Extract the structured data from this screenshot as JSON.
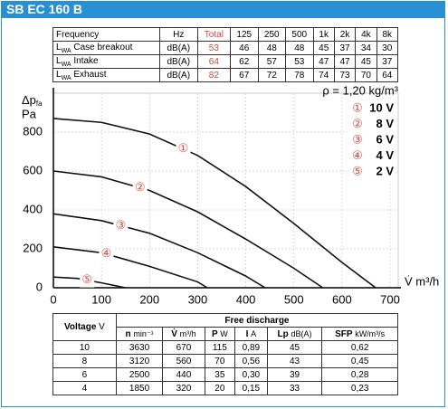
{
  "header": {
    "title": "SB EC 160 B"
  },
  "sound_table": {
    "header": [
      "Frequency",
      "Hz",
      "Total",
      "125",
      "250",
      "500",
      "1k",
      "2k",
      "4k",
      "8k"
    ],
    "rows": [
      {
        "label": "L",
        "sub": "WA",
        "name": "Case breakout",
        "unit": "dB(A)",
        "values": [
          "53",
          "46",
          "48",
          "48",
          "45",
          "37",
          "34",
          "30"
        ]
      },
      {
        "label": "L",
        "sub": "WA",
        "name": "Intake",
        "unit": "dB(A)",
        "values": [
          "64",
          "62",
          "57",
          "53",
          "47",
          "47",
          "45",
          "37"
        ]
      },
      {
        "label": "L",
        "sub": "WA",
        "name": "Exhaust",
        "unit": "dB(A)",
        "values": [
          "82",
          "67",
          "72",
          "78",
          "74",
          "73",
          "70",
          "64"
        ]
      }
    ]
  },
  "chart_data": {
    "type": "line",
    "y_label": "Δp",
    "y_label_sub": "fa",
    "y_unit": "Pa",
    "x_label": "V̇ m³/h",
    "density": "ρ = 1,20 kg/m³",
    "xlim": [
      0,
      700
    ],
    "ylim": [
      0,
      1000
    ],
    "xticks": [
      0,
      100,
      200,
      300,
      400,
      500,
      600,
      700
    ],
    "yticks": [
      0,
      200,
      400,
      600,
      800
    ],
    "grid": true,
    "marker_color": "#d9463b",
    "series": [
      {
        "name": "10 V",
        "marker": "①",
        "color": "#111111",
        "x": [
          0,
          100,
          200,
          300,
          400,
          500,
          600,
          670
        ],
        "values": [
          870,
          850,
          790,
          680,
          520,
          330,
          130,
          0
        ]
      },
      {
        "name": "8 V",
        "marker": "②",
        "color": "#111111",
        "x": [
          0,
          100,
          200,
          300,
          400,
          500,
          560
        ],
        "values": [
          600,
          570,
          500,
          390,
          250,
          100,
          0
        ]
      },
      {
        "name": "6 V",
        "marker": "③",
        "color": "#111111",
        "x": [
          0,
          100,
          200,
          300,
          400,
          440
        ],
        "values": [
          380,
          345,
          280,
          180,
          60,
          0
        ]
      },
      {
        "name": "4 V",
        "marker": "④",
        "color": "#111111",
        "x": [
          0,
          100,
          200,
          300,
          320
        ],
        "values": [
          210,
          180,
          110,
          30,
          0
        ]
      },
      {
        "name": "2 V",
        "marker": "⑤",
        "color": "#111111",
        "x": [
          0,
          50,
          100,
          150
        ],
        "values": [
          55,
          48,
          25,
          0
        ]
      }
    ]
  },
  "performance_table": {
    "voltage": "Voltage",
    "voltage_unit": "V",
    "group": "Free discharge",
    "columns": [
      {
        "name": "n",
        "unit": "min⁻¹"
      },
      {
        "name": "V̇",
        "unit": "m³/h"
      },
      {
        "name": "P",
        "unit": "W"
      },
      {
        "name": "I",
        "unit": "A"
      },
      {
        "name": "Lp",
        "unit": "dB(A)"
      },
      {
        "name": "SFP",
        "unit": "kW/m³/s"
      }
    ],
    "rows": [
      [
        "10",
        "3630",
        "670",
        "115",
        "0,89",
        "45",
        "0,62"
      ],
      [
        "8",
        "3120",
        "560",
        "70",
        "0,56",
        "43",
        "0,45"
      ],
      [
        "6",
        "2500",
        "440",
        "35",
        "0,30",
        "39",
        "0,28"
      ],
      [
        "4",
        "1850",
        "320",
        "20",
        "0,15",
        "33",
        "0,23"
      ]
    ]
  }
}
